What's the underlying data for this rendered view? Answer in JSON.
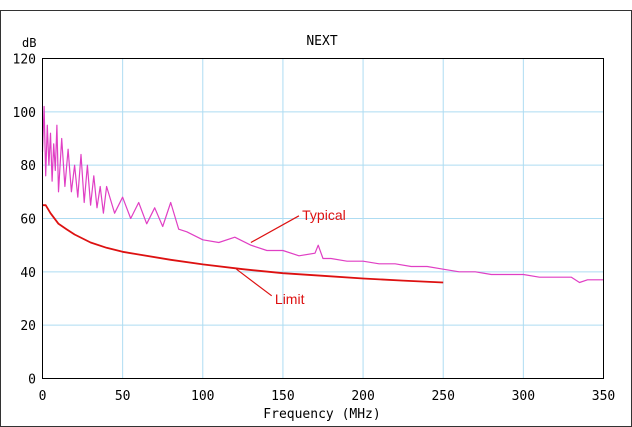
{
  "chart_data": {
    "type": "line",
    "title": "NEXT",
    "xlabel": "Frequency (MHz)",
    "ylabel": "dB",
    "xlim": [
      0,
      350
    ],
    "ylim": [
      0,
      120
    ],
    "x_ticks": [
      0,
      50,
      100,
      150,
      200,
      250,
      300,
      350
    ],
    "y_ticks": [
      0,
      20,
      40,
      60,
      80,
      100,
      120
    ],
    "grid": true,
    "colors": {
      "typical": "#e03fc4",
      "limit": "#dd1111",
      "grid": "#aedcf2",
      "annotation": "#dd1111"
    },
    "annotations": [
      {
        "text": "Typical",
        "series": "Typical"
      },
      {
        "text": "Limit",
        "series": "Limit"
      }
    ],
    "series": [
      {
        "name": "Typical",
        "x": [
          0,
          1,
          2,
          3,
          4,
          5,
          6,
          7,
          8,
          9,
          10,
          12,
          14,
          16,
          18,
          20,
          22,
          24,
          26,
          28,
          30,
          32,
          34,
          36,
          38,
          40,
          45,
          50,
          55,
          60,
          65,
          70,
          75,
          80,
          85,
          90,
          100,
          110,
          120,
          130,
          140,
          150,
          160,
          170,
          172,
          175,
          180,
          190,
          200,
          210,
          220,
          230,
          240,
          250,
          260,
          270,
          280,
          290,
          300,
          310,
          320,
          330,
          335,
          340,
          350
        ],
        "values": [
          85,
          102,
          76,
          95,
          80,
          92,
          74,
          88,
          78,
          95,
          70,
          90,
          72,
          86,
          70,
          80,
          68,
          84,
          66,
          80,
          65,
          76,
          64,
          72,
          62,
          72,
          62,
          68,
          60,
          66,
          58,
          64,
          57,
          66,
          56,
          55,
          52,
          51,
          53,
          50,
          48,
          48,
          46,
          47,
          50,
          45,
          45,
          44,
          44,
          43,
          43,
          42,
          42,
          41,
          40,
          40,
          39,
          39,
          39,
          38,
          38,
          38,
          36,
          37,
          37
        ]
      },
      {
        "name": "Limit",
        "x": [
          0,
          2,
          5,
          10,
          15,
          20,
          30,
          40,
          50,
          60,
          80,
          100,
          125,
          150,
          175,
          200,
          225,
          250
        ],
        "values": [
          65,
          65,
          62,
          58,
          56,
          54,
          51,
          49,
          47.5,
          46.5,
          44.5,
          42.8,
          41,
          39.5,
          38.5,
          37.5,
          36.7,
          36
        ]
      }
    ]
  }
}
